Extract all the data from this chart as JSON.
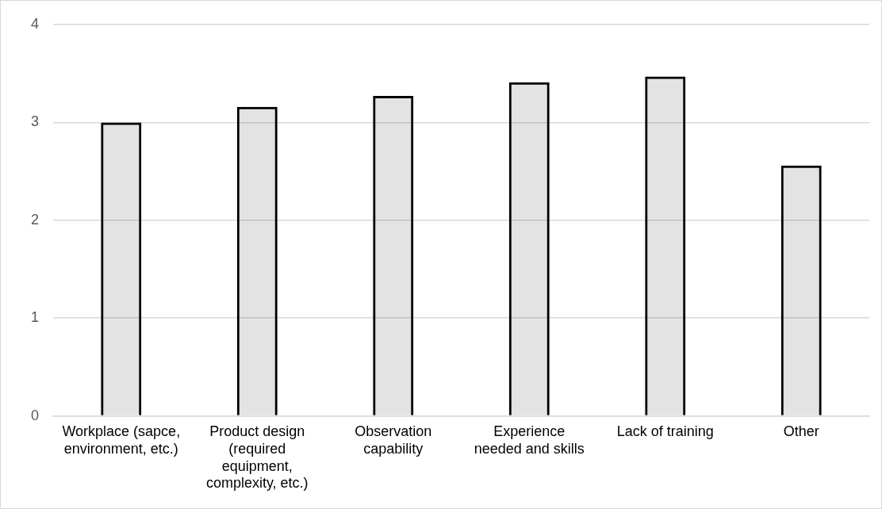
{
  "chart_data": {
    "type": "bar",
    "categories": [
      "Workplace (sapce, environment, etc.)",
      "Product design (required equipment, complexity, etc.)",
      "Observation capability",
      "Experience needed and skills",
      "Lack of training",
      "Other"
    ],
    "values": [
      3.0,
      3.16,
      3.27,
      3.41,
      3.47,
      2.56
    ],
    "color": "#000000",
    "ylim": [
      0,
      4
    ],
    "yticks": [
      0,
      1,
      2,
      3,
      4
    ],
    "grid": "y",
    "legend": false
  }
}
